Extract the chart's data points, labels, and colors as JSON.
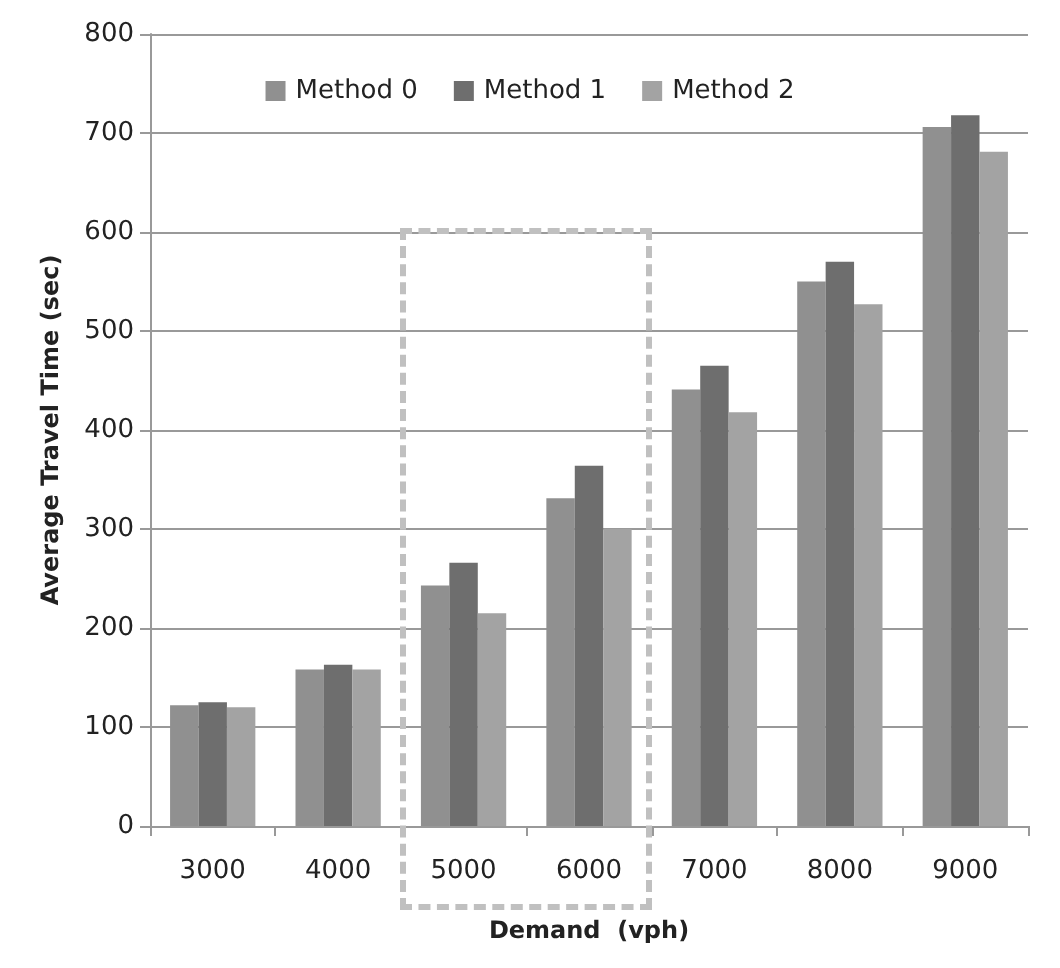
{
  "chart_data": {
    "type": "bar",
    "xlabel": "Demand  (vph)",
    "ylabel": "Average Travel Time (sec)",
    "categories": [
      "3000",
      "4000",
      "5000",
      "6000",
      "7000",
      "8000",
      "9000"
    ],
    "series": [
      {
        "name": "Method 0",
        "color": "#909090",
        "values": [
          122,
          158,
          243,
          331,
          441,
          550,
          706
        ]
      },
      {
        "name": "Method 1",
        "color": "#6e6e6e",
        "values": [
          125,
          163,
          266,
          364,
          465,
          570,
          718
        ]
      },
      {
        "name": "Method 2",
        "color": "#a3a3a3",
        "values": [
          120,
          158,
          215,
          300,
          418,
          527,
          681
        ]
      }
    ],
    "ylim": [
      0,
      800
    ],
    "yticks": [
      0,
      100,
      200,
      300,
      400,
      500,
      600,
      700,
      800
    ],
    "grid": "y",
    "legend": "top"
  }
}
